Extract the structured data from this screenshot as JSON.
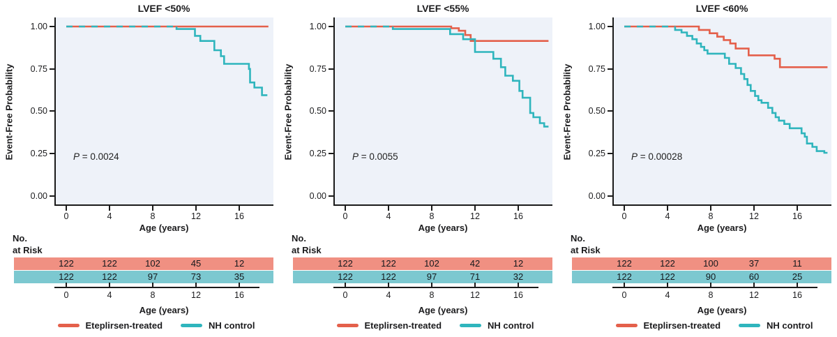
{
  "colors": {
    "eteplirsen_line": "#E4604B",
    "nh_line": "#2FB5BD",
    "eteplirsen_band": "#F09082",
    "nh_band": "#7CC8D0",
    "plot_bg": "#EEF2F9",
    "axis": "#1A1A1A"
  },
  "legend": {
    "eteplirsen": "Eteplirsen-treated",
    "nh": "NH control"
  },
  "chart_data": [
    {
      "type": "line",
      "subtype": "kaplan-meier-step",
      "title": "LVEF <50%",
      "xlabel": "Age (years)",
      "ylabel": "Event-Free Probability",
      "p_label": "P",
      "p_rest": " = 0.0024",
      "xlim": [
        0,
        19
      ],
      "ylim": [
        0.0,
        1.0
      ],
      "xtick_labels": [
        "0",
        "4",
        "8",
        "12",
        "16"
      ],
      "ytick_labels": [
        "1.00",
        "0.75",
        "0.50",
        "0.25",
        "0.00"
      ],
      "legend_position": "bottom",
      "series": [
        {
          "name": "Eteplirsen-treated",
          "color_key": "eteplirsen_line",
          "step_points": [
            [
              0,
              1.0
            ],
            [
              18.7,
              1.0
            ]
          ]
        },
        {
          "name": "NH control",
          "color_key": "nh_line",
          "overlap_points": [
            [
              0,
              1.0
            ],
            [
              10.2,
              1.0
            ]
          ],
          "step_points": [
            [
              10.2,
              1.0
            ],
            [
              10.2,
              0.985
            ],
            [
              11.9,
              0.985
            ],
            [
              11.9,
              0.945
            ],
            [
              12.4,
              0.945
            ],
            [
              12.4,
              0.915
            ],
            [
              13.7,
              0.915
            ],
            [
              13.7,
              0.86
            ],
            [
              14.3,
              0.86
            ],
            [
              14.3,
              0.825
            ],
            [
              14.6,
              0.825
            ],
            [
              14.6,
              0.78
            ],
            [
              16.9,
              0.78
            ],
            [
              16.9,
              0.75
            ],
            [
              17.0,
              0.75
            ],
            [
              17.0,
              0.67
            ],
            [
              17.4,
              0.67
            ],
            [
              17.4,
              0.64
            ],
            [
              18.1,
              0.64
            ],
            [
              18.1,
              0.595
            ],
            [
              18.6,
              0.595
            ]
          ]
        }
      ],
      "risk_table": {
        "header_line1": "No.",
        "header_line2": "at Risk",
        "axis_label": "Age (years)",
        "axis_ticks": [
          "0",
          "4",
          "8",
          "12",
          "16"
        ],
        "rows": [
          {
            "series": "Eteplirsen-treated",
            "values": [
              "122",
              "122",
              "102",
              "45",
              "12"
            ]
          },
          {
            "series": "NH control",
            "values": [
              "122",
              "122",
              "97",
              "73",
              "35"
            ]
          }
        ]
      }
    },
    {
      "type": "line",
      "subtype": "kaplan-meier-step",
      "title": "LVEF <55%",
      "xlabel": "Age (years)",
      "ylabel": "Event-Free Probability",
      "p_label": "P",
      "p_rest": " = 0.0055",
      "xlim": [
        0,
        19
      ],
      "ylim": [
        0.0,
        1.0
      ],
      "xtick_labels": [
        "0",
        "4",
        "8",
        "12",
        "16"
      ],
      "ytick_labels": [
        "1.00",
        "0.75",
        "0.50",
        "0.25",
        "0.00"
      ],
      "legend_position": "bottom",
      "series": [
        {
          "name": "Eteplirsen-treated",
          "color_key": "eteplirsen_line",
          "step_points": [
            [
              0,
              1.0
            ],
            [
              9.8,
              1.0
            ],
            [
              9.8,
              0.99
            ],
            [
              10.5,
              0.99
            ],
            [
              10.5,
              0.975
            ],
            [
              11.1,
              0.975
            ],
            [
              11.1,
              0.95
            ],
            [
              11.6,
              0.95
            ],
            [
              11.6,
              0.915
            ],
            [
              18.8,
              0.915
            ]
          ]
        },
        {
          "name": "NH control",
          "color_key": "nh_line",
          "overlap_points": [
            [
              0,
              1.0
            ],
            [
              4.4,
              1.0
            ]
          ],
          "step_points": [
            [
              4.4,
              1.0
            ],
            [
              4.4,
              0.985
            ],
            [
              9.7,
              0.985
            ],
            [
              9.7,
              0.955
            ],
            [
              10.9,
              0.955
            ],
            [
              10.9,
              0.925
            ],
            [
              12.0,
              0.925
            ],
            [
              12.0,
              0.85
            ],
            [
              13.7,
              0.85
            ],
            [
              13.7,
              0.81
            ],
            [
              14.4,
              0.81
            ],
            [
              14.4,
              0.76
            ],
            [
              14.8,
              0.76
            ],
            [
              14.8,
              0.71
            ],
            [
              15.5,
              0.71
            ],
            [
              15.5,
              0.68
            ],
            [
              16.1,
              0.68
            ],
            [
              16.1,
              0.62
            ],
            [
              16.4,
              0.62
            ],
            [
              16.4,
              0.58
            ],
            [
              17.1,
              0.58
            ],
            [
              17.1,
              0.49
            ],
            [
              17.4,
              0.49
            ],
            [
              17.4,
              0.465
            ],
            [
              18.0,
              0.465
            ],
            [
              18.0,
              0.43
            ],
            [
              18.4,
              0.43
            ],
            [
              18.4,
              0.41
            ],
            [
              18.8,
              0.41
            ]
          ]
        }
      ],
      "risk_table": {
        "header_line1": "No.",
        "header_line2": "at Risk",
        "axis_label": "Age (years)",
        "axis_ticks": [
          "0",
          "4",
          "8",
          "12",
          "16"
        ],
        "rows": [
          {
            "series": "Eteplirsen-treated",
            "values": [
              "122",
              "122",
              "102",
              "42",
              "12"
            ]
          },
          {
            "series": "NH control",
            "values": [
              "122",
              "122",
              "97",
              "71",
              "32"
            ]
          }
        ]
      }
    },
    {
      "type": "line",
      "subtype": "kaplan-meier-step",
      "title": "LVEF <60%",
      "xlabel": "Age (years)",
      "ylabel": "Event-Free Probability",
      "p_label": "P",
      "p_rest": " = 0.00028",
      "xlim": [
        0,
        19
      ],
      "ylim": [
        0.0,
        1.0
      ],
      "xtick_labels": [
        "0",
        "4",
        "8",
        "12",
        "16"
      ],
      "ytick_labels": [
        "1.00",
        "0.75",
        "0.50",
        "0.25",
        "0.00"
      ],
      "legend_position": "bottom",
      "series": [
        {
          "name": "Eteplirsen-treated",
          "color_key": "eteplirsen_line",
          "step_points": [
            [
              0,
              1.0
            ],
            [
              6.9,
              1.0
            ],
            [
              6.9,
              0.98
            ],
            [
              7.9,
              0.98
            ],
            [
              7.9,
              0.96
            ],
            [
              8.6,
              0.96
            ],
            [
              8.6,
              0.94
            ],
            [
              9.2,
              0.94
            ],
            [
              9.2,
              0.92
            ],
            [
              9.8,
              0.92
            ],
            [
              9.8,
              0.9
            ],
            [
              10.3,
              0.9
            ],
            [
              10.3,
              0.87
            ],
            [
              11.5,
              0.87
            ],
            [
              11.5,
              0.83
            ],
            [
              13.9,
              0.83
            ],
            [
              13.9,
              0.81
            ],
            [
              14.4,
              0.81
            ],
            [
              14.4,
              0.76
            ],
            [
              18.8,
              0.76
            ]
          ]
        },
        {
          "name": "NH control",
          "color_key": "nh_line",
          "overlap_points": [
            [
              0,
              1.0
            ],
            [
              4.7,
              1.0
            ]
          ],
          "step_points": [
            [
              4.7,
              1.0
            ],
            [
              4.7,
              0.98
            ],
            [
              5.3,
              0.98
            ],
            [
              5.3,
              0.965
            ],
            [
              5.8,
              0.965
            ],
            [
              5.8,
              0.945
            ],
            [
              6.3,
              0.945
            ],
            [
              6.3,
              0.925
            ],
            [
              6.7,
              0.925
            ],
            [
              6.7,
              0.9
            ],
            [
              7.1,
              0.9
            ],
            [
              7.1,
              0.88
            ],
            [
              7.4,
              0.88
            ],
            [
              7.4,
              0.86
            ],
            [
              7.7,
              0.86
            ],
            [
              7.7,
              0.84
            ],
            [
              9.3,
              0.84
            ],
            [
              9.3,
              0.815
            ],
            [
              9.7,
              0.815
            ],
            [
              9.7,
              0.78
            ],
            [
              10.3,
              0.78
            ],
            [
              10.3,
              0.755
            ],
            [
              10.8,
              0.755
            ],
            [
              10.8,
              0.72
            ],
            [
              11.1,
              0.72
            ],
            [
              11.1,
              0.69
            ],
            [
              11.4,
              0.69
            ],
            [
              11.4,
              0.655
            ],
            [
              11.7,
              0.655
            ],
            [
              11.7,
              0.62
            ],
            [
              12.1,
              0.62
            ],
            [
              12.1,
              0.59
            ],
            [
              12.4,
              0.59
            ],
            [
              12.4,
              0.565
            ],
            [
              12.7,
              0.565
            ],
            [
              12.7,
              0.55
            ],
            [
              13.3,
              0.55
            ],
            [
              13.3,
              0.52
            ],
            [
              13.7,
              0.52
            ],
            [
              13.7,
              0.49
            ],
            [
              14.0,
              0.49
            ],
            [
              14.0,
              0.465
            ],
            [
              14.3,
              0.465
            ],
            [
              14.3,
              0.445
            ],
            [
              14.8,
              0.445
            ],
            [
              14.8,
              0.425
            ],
            [
              15.3,
              0.425
            ],
            [
              15.3,
              0.4
            ],
            [
              16.4,
              0.4
            ],
            [
              16.4,
              0.37
            ],
            [
              16.7,
              0.37
            ],
            [
              16.7,
              0.35
            ],
            [
              16.9,
              0.35
            ],
            [
              16.9,
              0.31
            ],
            [
              17.4,
              0.31
            ],
            [
              17.4,
              0.29
            ],
            [
              17.8,
              0.29
            ],
            [
              17.8,
              0.265
            ],
            [
              18.5,
              0.265
            ],
            [
              18.5,
              0.255
            ],
            [
              18.8,
              0.255
            ]
          ]
        }
      ],
      "risk_table": {
        "header_line1": "No.",
        "header_line2": "at Risk",
        "axis_label": "Age (years)",
        "axis_ticks": [
          "0",
          "4",
          "8",
          "12",
          "16"
        ],
        "rows": [
          {
            "series": "Eteplirsen-treated",
            "values": [
              "122",
              "122",
              "100",
              "37",
              "11"
            ]
          },
          {
            "series": "NH control",
            "values": [
              "122",
              "122",
              "90",
              "60",
              "25"
            ]
          }
        ]
      }
    }
  ]
}
